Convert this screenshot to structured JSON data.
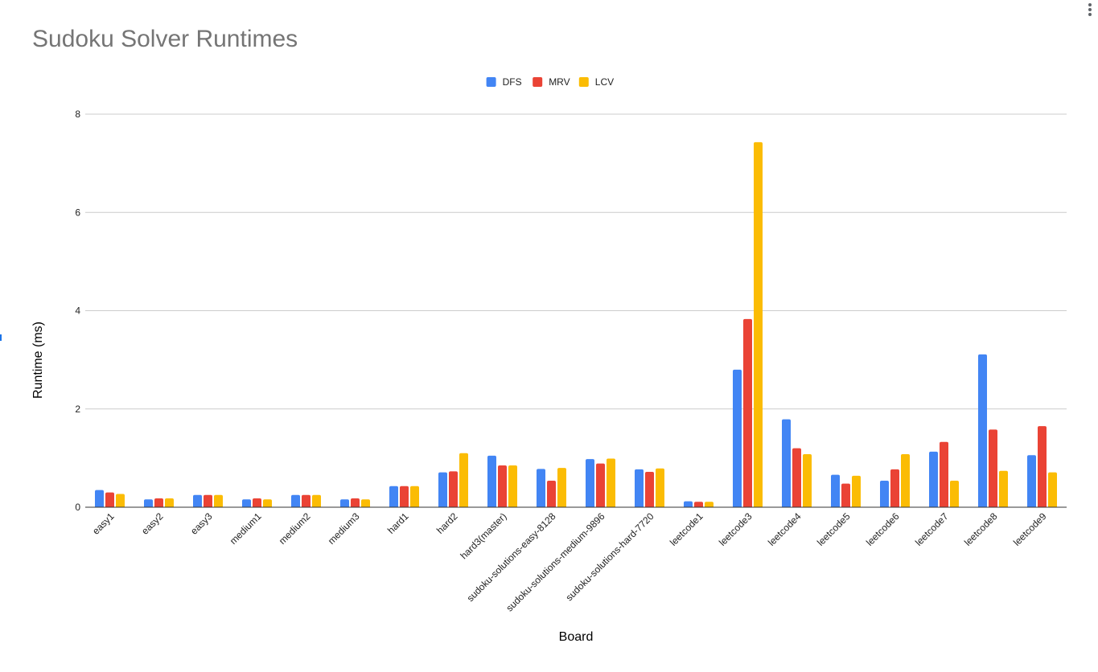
{
  "chart_data": {
    "type": "bar",
    "title": "Sudoku Solver Runtimes",
    "xlabel": "Board",
    "ylabel": "Runtime (ms)",
    "ylim": [
      0,
      8
    ],
    "yticks": [
      "0",
      "2",
      "4",
      "6",
      "8"
    ],
    "grid": true,
    "legend_position": "top",
    "categories": [
      "easy1",
      "easy2",
      "easy3",
      "medium1",
      "medium2",
      "medium3",
      "hard1",
      "hard2",
      "hard3(master)",
      "sudoku-solutions-easy-8128",
      "sudoku-solutions-medium-9896",
      "sudoku-solutions-hard-7720",
      "leetcode1",
      "leetcode3",
      "leetcode4",
      "leetcode5",
      "leetcode6",
      "leetcode7",
      "leetcode8",
      "leetcode9"
    ],
    "series": [
      {
        "name": "DFS",
        "color": "#4285f4",
        "values": [
          0.35,
          0.16,
          0.25,
          0.16,
          0.25,
          0.16,
          0.43,
          0.71,
          1.05,
          0.78,
          0.98,
          0.77,
          0.12,
          2.8,
          1.79,
          0.66,
          0.54,
          1.13,
          3.11,
          1.06
        ]
      },
      {
        "name": "MRV",
        "color": "#ea4335",
        "values": [
          0.3,
          0.18,
          0.25,
          0.18,
          0.25,
          0.18,
          0.43,
          0.73,
          0.85,
          0.54,
          0.89,
          0.72,
          0.11,
          3.83,
          1.2,
          0.48,
          0.77,
          1.33,
          1.58,
          1.65
        ]
      },
      {
        "name": "LCV",
        "color": "#fbbc04",
        "values": [
          0.27,
          0.18,
          0.25,
          0.16,
          0.25,
          0.16,
          0.43,
          1.1,
          0.85,
          0.8,
          0.99,
          0.79,
          0.11,
          7.43,
          1.08,
          0.64,
          1.08,
          0.54,
          0.74,
          0.71
        ]
      }
    ]
  }
}
